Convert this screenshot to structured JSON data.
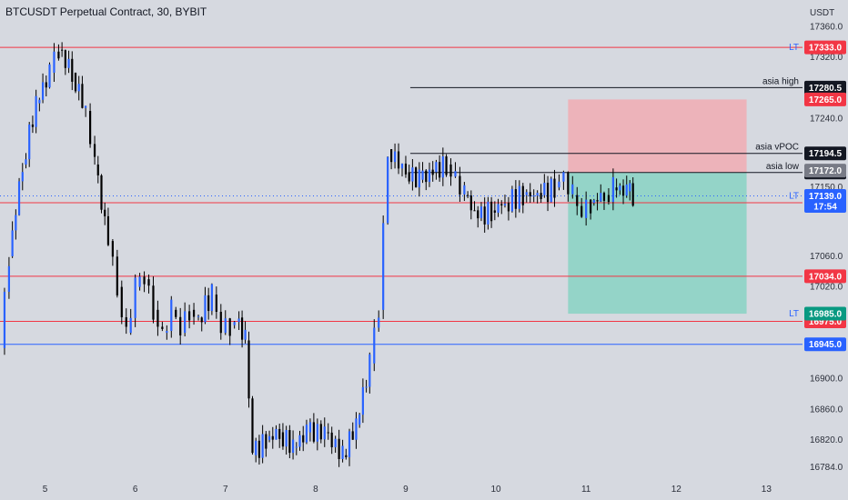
{
  "header": {
    "title": "BTCUSDT Perpetual Contract, 30, BYBIT"
  },
  "chart_data": {
    "type": "candlestick",
    "symbol": "BTCUSDT Perpetual Contract",
    "interval": "30",
    "exchange": "BYBIT",
    "currency_label": "USDT",
    "ylim": [
      16770,
      17395
    ],
    "y_ticks": [
      17360.0,
      17320.0,
      17240.0,
      17150.0,
      17060.0,
      17020.0,
      16900.0,
      16860.0,
      16820.0,
      16784.0
    ],
    "x_ticks": [
      {
        "label": "5",
        "day": 5
      },
      {
        "label": "6",
        "day": 6
      },
      {
        "label": "7",
        "day": 7
      },
      {
        "label": "8",
        "day": 8
      },
      {
        "label": "9",
        "day": 9
      },
      {
        "label": "10",
        "day": 10
      },
      {
        "label": "11",
        "day": 11
      },
      {
        "label": "12",
        "day": 12
      },
      {
        "label": "13",
        "day": 13
      }
    ],
    "xlim": [
      4.5,
      13.4
    ],
    "price_series": [
      [
        4.5,
        16940
      ],
      [
        4.6,
        17060
      ],
      [
        4.75,
        17180
      ],
      [
        4.9,
        17260
      ],
      [
        5.05,
        17300
      ],
      [
        5.15,
        17330
      ],
      [
        5.3,
        17300
      ],
      [
        5.45,
        17250
      ],
      [
        5.55,
        17180
      ],
      [
        5.7,
        17080
      ],
      [
        5.8,
        17020
      ],
      [
        5.9,
        16960
      ],
      [
        6.0,
        17020
      ],
      [
        6.1,
        17030
      ],
      [
        6.2,
        16990
      ],
      [
        6.3,
        16960
      ],
      [
        6.4,
        16990
      ],
      [
        6.5,
        16960
      ],
      [
        6.6,
        16990
      ],
      [
        6.7,
        16980
      ],
      [
        6.85,
        17010
      ],
      [
        6.95,
        16960
      ],
      [
        7.05,
        16970
      ],
      [
        7.15,
        16980
      ],
      [
        7.22,
        16950
      ],
      [
        7.3,
        16800
      ],
      [
        7.45,
        16820
      ],
      [
        7.6,
        16830
      ],
      [
        7.75,
        16810
      ],
      [
        7.9,
        16830
      ],
      [
        8.1,
        16830
      ],
      [
        8.3,
        16800
      ],
      [
        8.45,
        16840
      ],
      [
        8.6,
        16920
      ],
      [
        8.7,
        16990
      ],
      [
        8.8,
        17200
      ],
      [
        9.0,
        17170
      ],
      [
        9.15,
        17160
      ],
      [
        9.3,
        17170
      ],
      [
        9.45,
        17180
      ],
      [
        9.55,
        17165
      ],
      [
        9.65,
        17140
      ],
      [
        9.8,
        17110
      ],
      [
        9.95,
        17120
      ],
      [
        10.1,
        17130
      ],
      [
        10.3,
        17140
      ],
      [
        10.5,
        17140
      ],
      [
        10.65,
        17150
      ],
      [
        10.75,
        17170
      ],
      [
        10.85,
        17140
      ],
      [
        10.95,
        17110
      ],
      [
        11.05,
        17130
      ],
      [
        11.2,
        17140
      ],
      [
        11.3,
        17150
      ],
      [
        11.45,
        17145
      ],
      [
        11.52,
        17139
      ]
    ],
    "horizontal_levels": [
      {
        "price": 17333.0,
        "label": "17333.0",
        "color": "#f23645",
        "tag": "LT"
      },
      {
        "price": 17130.0,
        "label": "17130.0",
        "color": "#f23645",
        "tag": ""
      },
      {
        "price": 17034.0,
        "label": "17034.0",
        "color": "#f23645",
        "tag": ""
      },
      {
        "price": 16975.0,
        "label": "16975.0",
        "color": "#f23645",
        "tag": ""
      },
      {
        "price": 16945.0,
        "label": "16945.0",
        "color": "#2962ff",
        "tag": ""
      }
    ],
    "session_levels": [
      {
        "price": 17280.5,
        "label": "17280.5",
        "name": "asia high",
        "start_day": 9.05
      },
      {
        "price": 17194.5,
        "label": "17194.5",
        "name": "asia vPOC",
        "start_day": 9.05
      },
      {
        "price": 17169.5,
        "label": "17169.5",
        "name": "asia low",
        "start_day": 9.05
      }
    ],
    "price_labels": [
      {
        "price": 17265.0,
        "label": "17265.0",
        "color": "#f23645"
      },
      {
        "price": 17172.0,
        "label": "17172.0",
        "color": "#787b86"
      },
      {
        "price": 17139.0,
        "label": "17139.0",
        "color": "#2962ff",
        "sub": "17:54",
        "tag": "LT"
      },
      {
        "price": 16985.0,
        "label": "16985.0",
        "color": "#089981",
        "tag": "LT"
      }
    ],
    "position": {
      "start_day": 10.8,
      "end_day": 12.78,
      "entry": 17169.5,
      "stop": 17265.0,
      "target": 16985.0,
      "loss_color": "#f4a6ad",
      "profit_color": "#7ed1c0"
    },
    "colors": {
      "candle": "#2962ff",
      "wick": "#000000",
      "axis_text": "#2a2e39"
    }
  }
}
